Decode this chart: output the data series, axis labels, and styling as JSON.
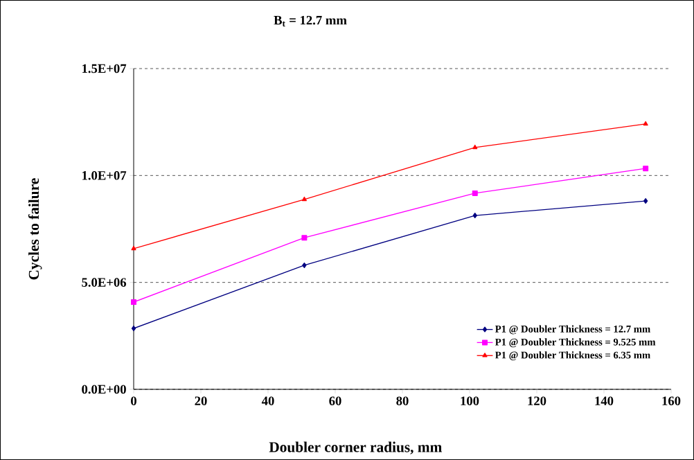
{
  "chart_data": {
    "type": "line",
    "title": "B$_{t}$ = 12.7 mm",
    "xlabel": "Doubler corner radius, mm",
    "ylabel": "Cycles to failure",
    "x": [
      0,
      50.8,
      101.6,
      152.4
    ],
    "series": [
      {
        "name": "P1 @ Doubler Thickness = 12.7 mm",
        "color": "#000080",
        "marker": "diamond",
        "values": [
          2850000,
          5800000,
          8130000,
          8810000
        ]
      },
      {
        "name": "P1 @ Doubler Thickness = 9.525 mm",
        "color": "#ff00ff",
        "marker": "square",
        "values": [
          4080000,
          7090000,
          9170000,
          10330000
        ]
      },
      {
        "name": "P1 @ Doubler Thickness = 6.35 mm",
        "color": "#ff0000",
        "marker": "triangle",
        "values": [
          6580000,
          8880000,
          11310000,
          12410000
        ]
      }
    ],
    "xlim": [
      0,
      160
    ],
    "xticks": [
      0,
      20,
      40,
      60,
      80,
      100,
      120,
      140,
      160
    ],
    "ylim": [
      0,
      15000000
    ],
    "yticks": [
      {
        "value": 0,
        "label": "0.0E+00"
      },
      {
        "value": 5000000,
        "label": "5.0E+06"
      },
      {
        "value": 10000000,
        "label": "1.0E+07"
      },
      {
        "value": 15000000,
        "label": "1.5E+07"
      }
    ],
    "grid": "y",
    "legend": "bottom right",
    "line_style": "solid"
  }
}
